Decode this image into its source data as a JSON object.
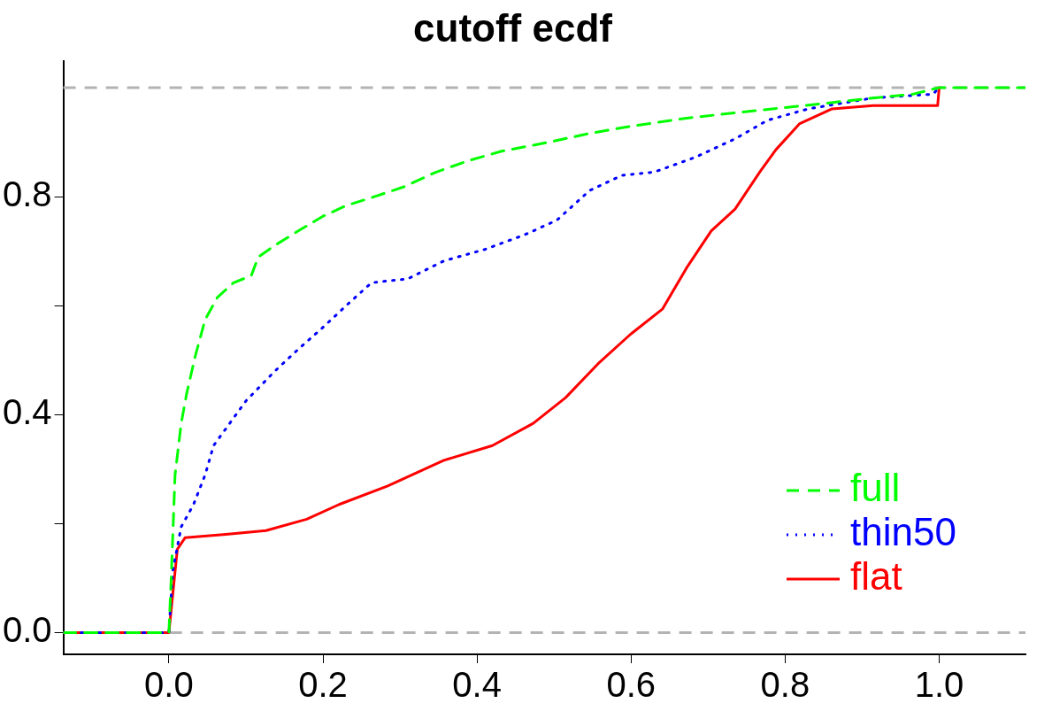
{
  "chart_data": {
    "type": "line",
    "title": "cutoff ecdf",
    "xlim": [
      -0.137,
      1.112
    ],
    "ylim": [
      -0.04,
      1.049
    ],
    "xticks": [
      {
        "value": 0,
        "label": "0.0"
      },
      {
        "value": 0.2,
        "label": "0.2"
      },
      {
        "value": 0.4,
        "label": "0.4"
      },
      {
        "value": 0.6,
        "label": "0.6"
      },
      {
        "value": 0.8,
        "label": "0.8"
      },
      {
        "value": 1,
        "label": "1.0"
      }
    ],
    "yticks": [
      {
        "value": 0,
        "label": "0.0"
      },
      {
        "value": 0.2,
        "label": null
      },
      {
        "value": 0.4,
        "label": "0.4"
      },
      {
        "value": 0.6,
        "label": null
      },
      {
        "value": 0.8,
        "label": "0.8"
      }
    ],
    "grid": false,
    "legend": "bottom right",
    "marker": "none",
    "ref_lines": [
      {
        "axis": "y",
        "value": 0,
        "color": "#b3b3b3",
        "line_style": "dashed"
      },
      {
        "axis": "y",
        "value": 1,
        "color": "#b3b3b3",
        "line_style": "dashed"
      }
    ],
    "series": [
      {
        "name": "full",
        "color": "#00ff00",
        "line_style": "dashed",
        "x": [
          -0.137,
          0,
          0.003,
          0.008,
          0.016,
          0.023,
          0.034,
          0.047,
          0.063,
          0.084,
          0.107,
          0.116,
          0.137,
          0.168,
          0.2,
          0.231,
          0.263,
          0.305,
          0.347,
          0.389,
          0.431,
          0.494,
          0.546,
          0.599,
          0.672,
          0.756,
          0.851,
          0.914,
          0.966,
          1,
          1.112
        ],
        "values": [
          0,
          0,
          0.099,
          0.289,
          0.384,
          0.438,
          0.506,
          0.574,
          0.615,
          0.642,
          0.655,
          0.689,
          0.71,
          0.737,
          0.764,
          0.784,
          0.798,
          0.818,
          0.845,
          0.866,
          0.883,
          0.9,
          0.916,
          0.929,
          0.944,
          0.957,
          0.971,
          0.981,
          0.988,
          1,
          1
        ]
      },
      {
        "name": "thin50",
        "color": "#0000ff",
        "line_style": "dotted",
        "x": [
          -0.137,
          0,
          0.005,
          0.016,
          0.032,
          0.047,
          0.058,
          0.079,
          0.1,
          0.137,
          0.168,
          0.2,
          0.231,
          0.263,
          0.31,
          0.357,
          0.41,
          0.462,
          0.504,
          0.546,
          0.588,
          0.63,
          0.683,
          0.735,
          0.777,
          0.83,
          0.914,
          0.992,
          1
        ],
        "values": [
          0,
          0,
          0.113,
          0.194,
          0.235,
          0.289,
          0.343,
          0.384,
          0.425,
          0.479,
          0.52,
          0.56,
          0.601,
          0.642,
          0.649,
          0.682,
          0.703,
          0.73,
          0.757,
          0.811,
          0.839,
          0.845,
          0.872,
          0.906,
          0.94,
          0.961,
          0.981,
          0.988,
          1
        ]
      },
      {
        "name": "flat",
        "color": "#ff0000",
        "line_style": "solid",
        "x": [
          -0.137,
          0,
          0.011,
          0.021,
          0.074,
          0.126,
          0.179,
          0.221,
          0.284,
          0.357,
          0.42,
          0.473,
          0.515,
          0.557,
          0.599,
          0.641,
          0.672,
          0.704,
          0.735,
          0.767,
          0.788,
          0.819,
          0.861,
          0.914,
          0.998,
          1
        ],
        "values": [
          0,
          0,
          0.153,
          0.174,
          0.18,
          0.187,
          0.208,
          0.235,
          0.269,
          0.316,
          0.343,
          0.384,
          0.431,
          0.493,
          0.547,
          0.594,
          0.669,
          0.737,
          0.777,
          0.845,
          0.886,
          0.934,
          0.961,
          0.967,
          0.967,
          1
        ]
      }
    ]
  }
}
